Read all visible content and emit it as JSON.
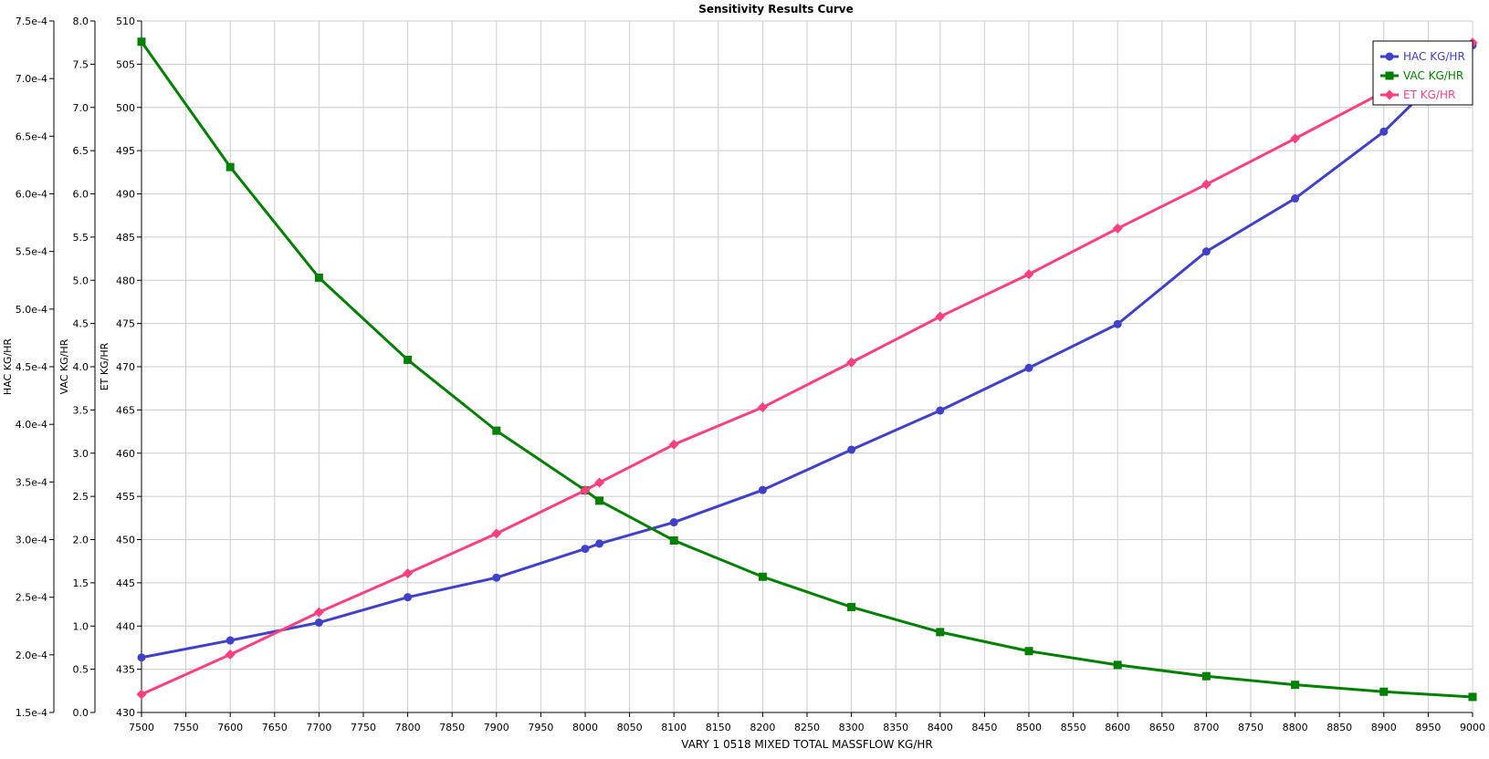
{
  "chart_data": {
    "type": "line",
    "title": "Sensitivity Results Curve",
    "xlabel": "VARY   1 0518 MIXED TOTAL MASSFLOW KG/HR",
    "xlim": [
      7500,
      9000
    ],
    "xticks": [
      7500,
      7550,
      7600,
      7650,
      7700,
      7750,
      7800,
      7850,
      7900,
      7950,
      8000,
      8050,
      8100,
      8150,
      8200,
      8250,
      8300,
      8350,
      8400,
      8450,
      8500,
      8550,
      8600,
      8650,
      8700,
      8750,
      8800,
      8850,
      8900,
      8950,
      9000
    ],
    "grid": true,
    "legend_position": "top-right",
    "x": [
      7500,
      7600,
      7700,
      7800,
      7900,
      8000,
      8016,
      8100,
      8200,
      8300,
      8400,
      8500,
      8600,
      8700,
      8800,
      8900,
      9000
    ],
    "axes": [
      {
        "id": "hac",
        "label": "HAC KG/HR",
        "ylim": [
          0.00015,
          0.00075
        ],
        "ticks": [
          "1.5e-4",
          "2.0e-4",
          "2.5e-4",
          "3.0e-4",
          "3.5e-4",
          "4.0e-4",
          "4.5e-4",
          "5.0e-4",
          "5.5e-4",
          "6.0e-4",
          "6.5e-4",
          "7.0e-4",
          "7.5e-4"
        ]
      },
      {
        "id": "vac",
        "label": "VAC KG/HR",
        "ylim": [
          0,
          8
        ],
        "ticks": [
          "0.0",
          "0.5",
          "1.0",
          "1.5",
          "2.0",
          "2.5",
          "3.0",
          "3.5",
          "4.0",
          "4.5",
          "5.0",
          "5.5",
          "6.0",
          "6.5",
          "7.0",
          "7.5",
          "8.0"
        ]
      },
      {
        "id": "et",
        "label": "ET KG/HR",
        "ylim": [
          430,
          510
        ],
        "ticks": [
          "430",
          "435",
          "440",
          "445",
          "450",
          "455",
          "460",
          "465",
          "470",
          "475",
          "480",
          "485",
          "490",
          "495",
          "500",
          "505",
          "510"
        ]
      }
    ],
    "series": [
      {
        "name": "HAC KG/HR",
        "axis": "hac",
        "color": "#4040c8",
        "marker": "circle",
        "values": [
          0.0001977,
          0.0002125,
          0.000228,
          0.00025,
          0.000267,
          0.000292,
          0.0002965,
          0.000315,
          0.000343,
          0.000378,
          0.000412,
          0.000449,
          0.000487,
          0.00055,
          0.000596,
          0.000654,
          0.000729
        ]
      },
      {
        "name": "VAC KG/HR",
        "axis": "vac",
        "color": "#008000",
        "marker": "square",
        "values": [
          7.76,
          6.31,
          5.03,
          4.08,
          3.26,
          2.57,
          2.45,
          1.99,
          1.57,
          1.22,
          0.93,
          0.71,
          0.55,
          0.42,
          0.32,
          0.24,
          0.18
        ]
      },
      {
        "name": "ET KG/HR",
        "axis": "et",
        "color": "#ff4080",
        "marker": "diamond",
        "values": [
          432.1,
          436.7,
          441.6,
          446.1,
          450.7,
          455.7,
          456.6,
          461.0,
          465.3,
          470.5,
          475.8,
          480.7,
          486.0,
          491.1,
          496.4,
          501.8,
          507.5
        ]
      }
    ]
  }
}
